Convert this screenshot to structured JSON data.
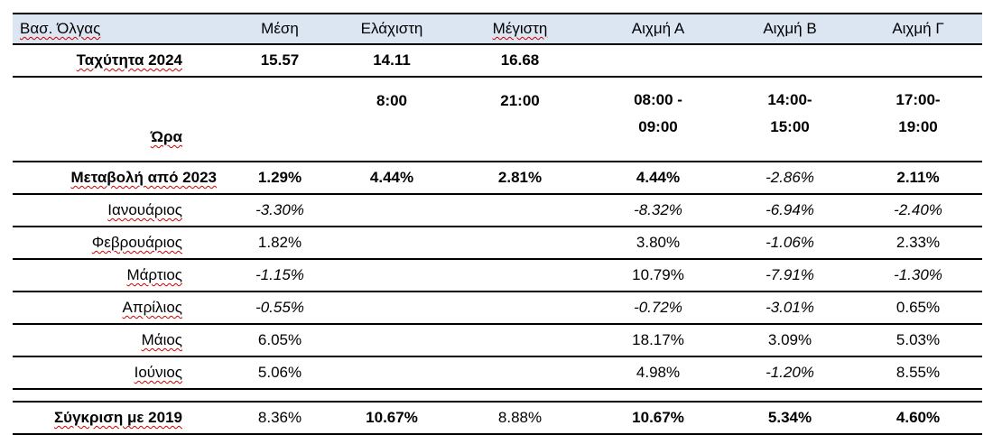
{
  "headers": [
    "Βασ. Όλγας",
    "Μέση",
    "Ελάχιστη",
    "Μέγιστη",
    "Αιχμή Α",
    "Αιχμή Β",
    "Αιχμή Γ"
  ],
  "speed_row": {
    "label": "Ταχύτητα 2024",
    "mean": "15.57",
    "min": "14.11",
    "max": "16.68"
  },
  "time_row": {
    "label": "Ώρα",
    "min": "8:00",
    "max": "21:00",
    "peak_a_1": "08:00 -",
    "peak_a_2": "09:00",
    "peak_b_1": "14:00-",
    "peak_b_2": "15:00",
    "peak_c_1": "17:00-",
    "peak_c_2": "19:00"
  },
  "change_row": {
    "label": "Μεταβολή από 2023",
    "mean": "1.29%",
    "min": "4.44%",
    "max": "2.81%",
    "peak_a": "4.44%",
    "peak_b": "-2.86%",
    "peak_c": "2.11%"
  },
  "months": [
    {
      "label": "Ιανουάριος",
      "mean": "-3.30%",
      "peak_a": "-8.32%",
      "peak_b": "-6.94%",
      "peak_c": "-2.40%"
    },
    {
      "label": "Φεβρουάριος",
      "mean": "1.82%",
      "peak_a": "3.80%",
      "peak_b": "-1.06%",
      "peak_c": "2.33%"
    },
    {
      "label": "Μάρτιος",
      "mean": "-1.15%",
      "peak_a": "10.79%",
      "peak_b": "-7.91%",
      "peak_c": "-1.30%"
    },
    {
      "label": "Απρίλιος",
      "mean": "-0.55%",
      "peak_a": "-0.72%",
      "peak_b": "-3.01%",
      "peak_c": "0.65%"
    },
    {
      "label": "Μάιος",
      "mean": "6.05%",
      "peak_a": "18.17%",
      "peak_b": "3.09%",
      "peak_c": "5.03%"
    },
    {
      "label": "Ιούνιος",
      "mean": "5.06%",
      "peak_a": "4.98%",
      "peak_b": "-1.20%",
      "peak_c": "8.55%"
    }
  ],
  "compare_row": {
    "label": "Σύγκριση με 2019",
    "mean": "8.36%",
    "min": "10.67%",
    "max": "8.88%",
    "peak_a": "10.67%",
    "peak_b": "5.34%",
    "peak_c": "4.60%"
  }
}
